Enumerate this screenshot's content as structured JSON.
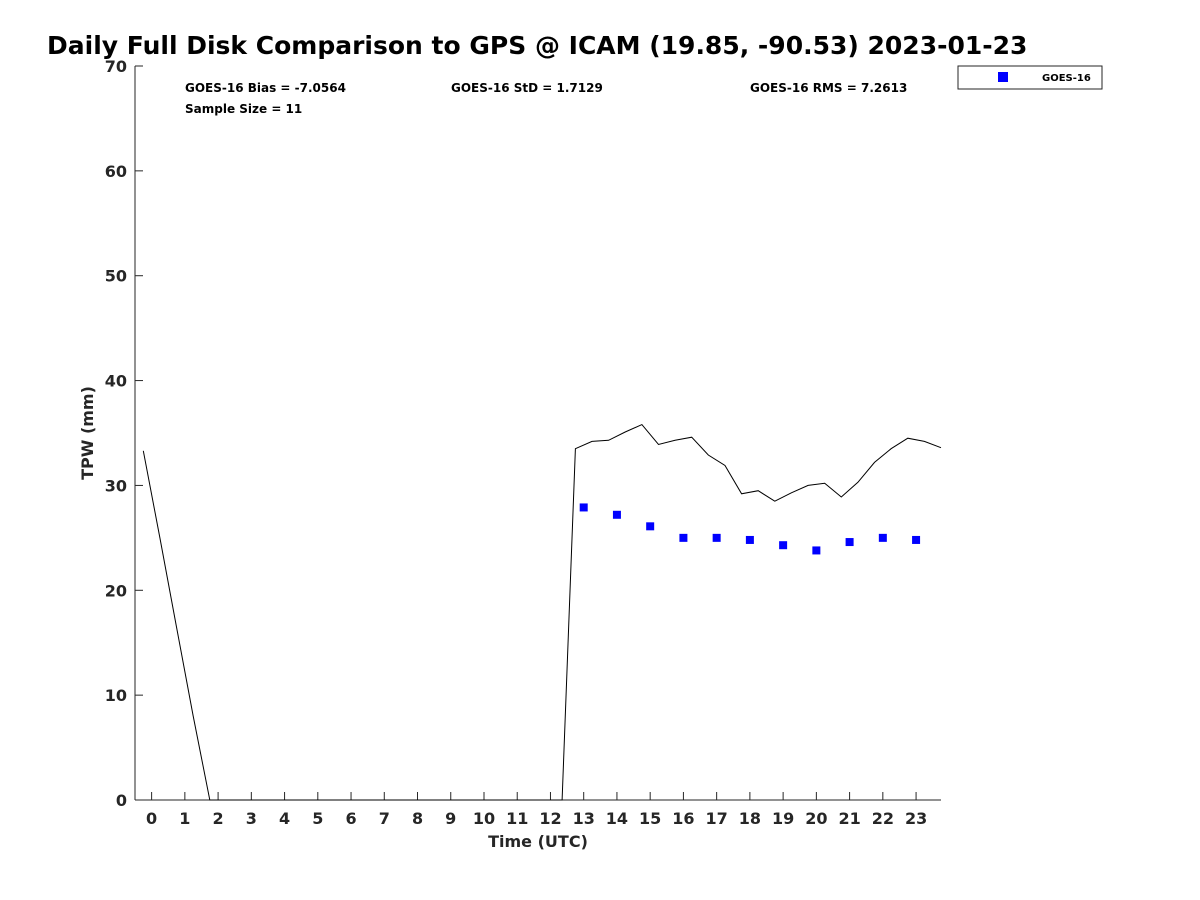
{
  "chart_data": {
    "type": "scatter",
    "title": "Daily Full Disk Comparison to GPS @ ICAM (19.85, -90.53) 2023-01-23",
    "xlabel": "Time (UTC)",
    "ylabel": "TPW (mm)",
    "xlim": [
      -0.5,
      23.75
    ],
    "ylim": [
      0,
      70
    ],
    "x_ticks": [
      0,
      1,
      2,
      3,
      4,
      5,
      6,
      7,
      8,
      9,
      10,
      11,
      12,
      13,
      14,
      15,
      16,
      17,
      18,
      19,
      20,
      21,
      22,
      23
    ],
    "y_ticks": [
      0,
      10,
      20,
      30,
      40,
      50,
      60,
      70
    ],
    "grid": false,
    "legend_position": "top-right, outside plot",
    "stats": {
      "bias": "GOES-16 Bias = -7.0564",
      "std": "GOES-16 StD = 1.7129",
      "rms": "GOES-16 RMS = 7.2613",
      "sample": "Sample Size = 11"
    },
    "series": [
      {
        "name": "GOES-16",
        "kind": "scatter",
        "color": "#0000ff",
        "marker": "square",
        "x": [
          13,
          14,
          15,
          16,
          17,
          18,
          19,
          20,
          21,
          22,
          23
        ],
        "y": [
          27.9,
          27.2,
          26.1,
          25.0,
          25.0,
          24.8,
          24.3,
          23.8,
          24.6,
          25.0,
          24.8
        ]
      },
      {
        "kind": "line",
        "color": "#000000",
        "x": [
          -0.25,
          0.25,
          0.75,
          1.25,
          1.75,
          12.35,
          12.75,
          13.25,
          13.75,
          14.25,
          14.75,
          15.25,
          15.75,
          16.25,
          16.75,
          17.25,
          17.75,
          18.25,
          18.75,
          19.25,
          19.75,
          20.25,
          20.75,
          21.25,
          21.75,
          22.25,
          22.75,
          23.25,
          23.75
        ],
        "y": [
          33.3,
          25.0,
          16.5,
          8.0,
          0.0,
          0.0,
          33.5,
          34.2,
          34.3,
          35.1,
          35.8,
          33.9,
          34.3,
          34.6,
          32.9,
          31.9,
          29.2,
          29.5,
          28.5,
          29.3,
          30.0,
          30.2,
          28.9,
          30.3,
          32.2,
          33.5,
          34.5,
          34.2,
          33.6
        ]
      }
    ]
  }
}
